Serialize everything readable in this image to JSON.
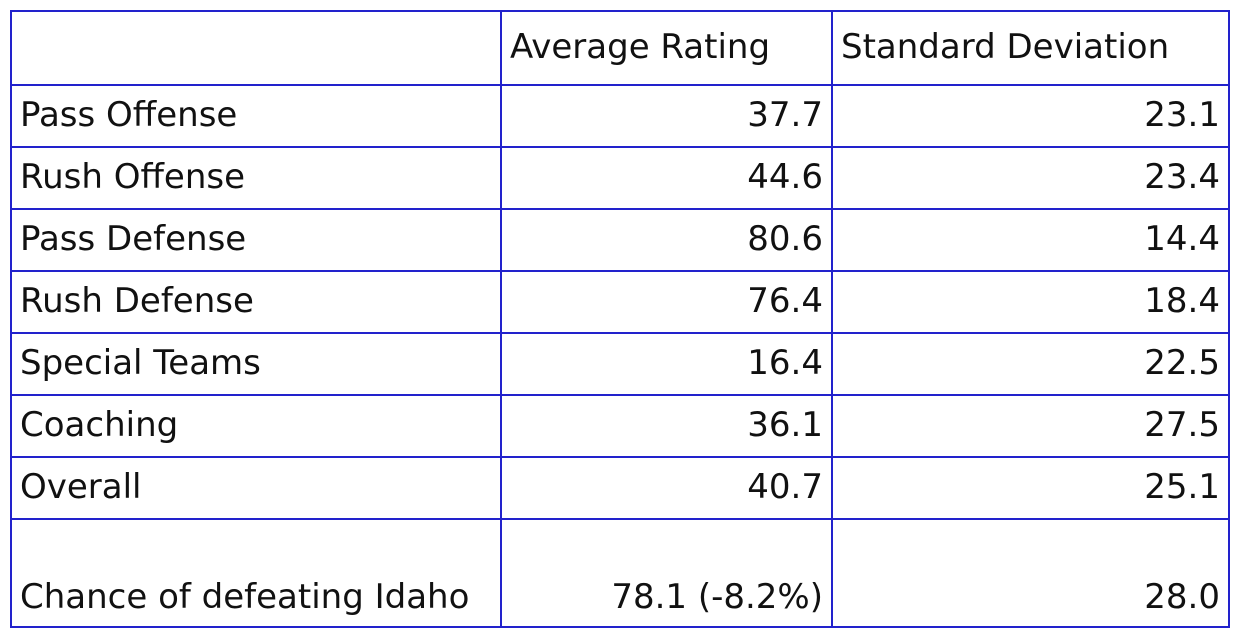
{
  "table": {
    "header": [
      "Average Rating",
      "Standard Deviation"
    ],
    "rows": [
      [
        "Pass Offense",
        "37.7",
        "23.1"
      ],
      [
        "Rush Offense",
        "44.6",
        "23.4"
      ],
      [
        "Pass Defense",
        "80.6",
        "14.4"
      ],
      [
        "Rush Defense",
        "76.4",
        "18.4"
      ],
      [
        "Special Teams",
        "16.4",
        "22.5"
      ],
      [
        "Coaching",
        "36.1",
        "27.5"
      ],
      [
        "Overall",
        "40.7",
        "25.1"
      ],
      [
        "Chance of defeating Idaho",
        "78.1 (-8.2%)",
        "28.0"
      ]
    ]
  }
}
